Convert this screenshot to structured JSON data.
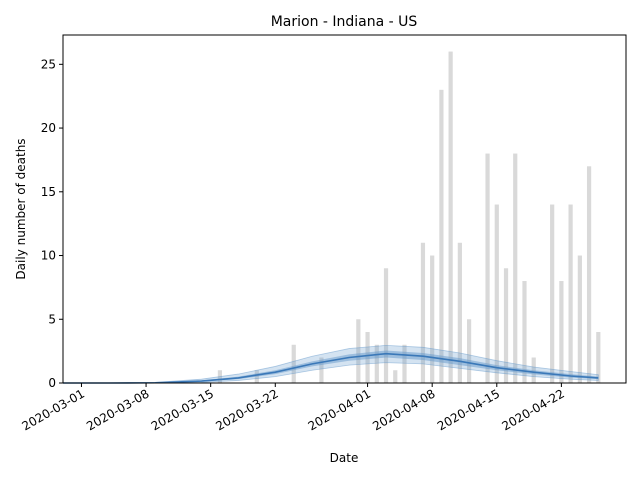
{
  "chart_data": {
    "type": "bar",
    "title": "Marion - Indiana - US",
    "xlabel": "Date",
    "ylabel": "Daily number of deaths",
    "x_start": "2020-02-28",
    "x_end": "2020-04-29",
    "ylim": [
      0,
      27.3
    ],
    "y_ticks": [
      0,
      5,
      10,
      15,
      20,
      25
    ],
    "x_ticks": [
      "2020-03-01",
      "2020-03-08",
      "2020-03-15",
      "2020-03-22",
      "2020-04-01",
      "2020-04-08",
      "2020-04-15",
      "2020-04-22"
    ],
    "grid": false,
    "colors": {
      "bars": "#d9d9d9",
      "band": "#6699cc",
      "mean": "#3a78b8"
    },
    "bars": [
      {
        "date": "2020-03-16",
        "value": 1
      },
      {
        "date": "2020-03-20",
        "value": 1
      },
      {
        "date": "2020-03-24",
        "value": 3
      },
      {
        "date": "2020-03-27",
        "value": 2
      },
      {
        "date": "2020-03-31",
        "value": 5
      },
      {
        "date": "2020-04-01",
        "value": 4
      },
      {
        "date": "2020-04-02",
        "value": 3
      },
      {
        "date": "2020-04-03",
        "value": 9
      },
      {
        "date": "2020-04-04",
        "value": 1
      },
      {
        "date": "2020-04-05",
        "value": 3
      },
      {
        "date": "2020-04-07",
        "value": 11
      },
      {
        "date": "2020-04-08",
        "value": 10
      },
      {
        "date": "2020-04-09",
        "value": 23
      },
      {
        "date": "2020-04-10",
        "value": 26
      },
      {
        "date": "2020-04-11",
        "value": 11
      },
      {
        "date": "2020-04-12",
        "value": 5
      },
      {
        "date": "2020-04-14",
        "value": 18
      },
      {
        "date": "2020-04-15",
        "value": 14
      },
      {
        "date": "2020-04-16",
        "value": 9
      },
      {
        "date": "2020-04-17",
        "value": 18
      },
      {
        "date": "2020-04-18",
        "value": 8
      },
      {
        "date": "2020-04-19",
        "value": 2
      },
      {
        "date": "2020-04-21",
        "value": 14
      },
      {
        "date": "2020-04-22",
        "value": 8
      },
      {
        "date": "2020-04-23",
        "value": 14
      },
      {
        "date": "2020-04-24",
        "value": 10
      },
      {
        "date": "2020-04-25",
        "value": 17
      },
      {
        "date": "2020-04-26",
        "value": 4
      }
    ],
    "model_curve": {
      "dates": [
        "2020-02-28",
        "2020-03-04",
        "2020-03-09",
        "2020-03-14",
        "2020-03-18",
        "2020-03-22",
        "2020-03-26",
        "2020-03-30",
        "2020-04-03",
        "2020-04-07",
        "2020-04-11",
        "2020-04-15",
        "2020-04-19",
        "2020-04-23",
        "2020-04-26"
      ],
      "mean": [
        0,
        0,
        0.02,
        0.15,
        0.4,
        0.85,
        1.5,
        2.0,
        2.3,
        2.1,
        1.7,
        1.2,
        0.85,
        0.55,
        0.4
      ],
      "band_inner_low": [
        0,
        0,
        0.01,
        0.1,
        0.3,
        0.7,
        1.3,
        1.75,
        2.0,
        1.8,
        1.4,
        1.0,
        0.68,
        0.42,
        0.3
      ],
      "band_inner_high": [
        0,
        0,
        0.03,
        0.2,
        0.5,
        1.0,
        1.7,
        2.25,
        2.55,
        2.35,
        1.95,
        1.4,
        1.0,
        0.7,
        0.5
      ],
      "band_outer_low": [
        0,
        0,
        0,
        0.05,
        0.2,
        0.5,
        1.0,
        1.4,
        1.6,
        1.5,
        1.15,
        0.8,
        0.5,
        0.3,
        0.2
      ],
      "band_outer_high": [
        0,
        0,
        0.05,
        0.3,
        0.7,
        1.3,
        2.1,
        2.7,
        2.95,
        2.8,
        2.35,
        1.75,
        1.25,
        0.9,
        0.65
      ]
    }
  }
}
